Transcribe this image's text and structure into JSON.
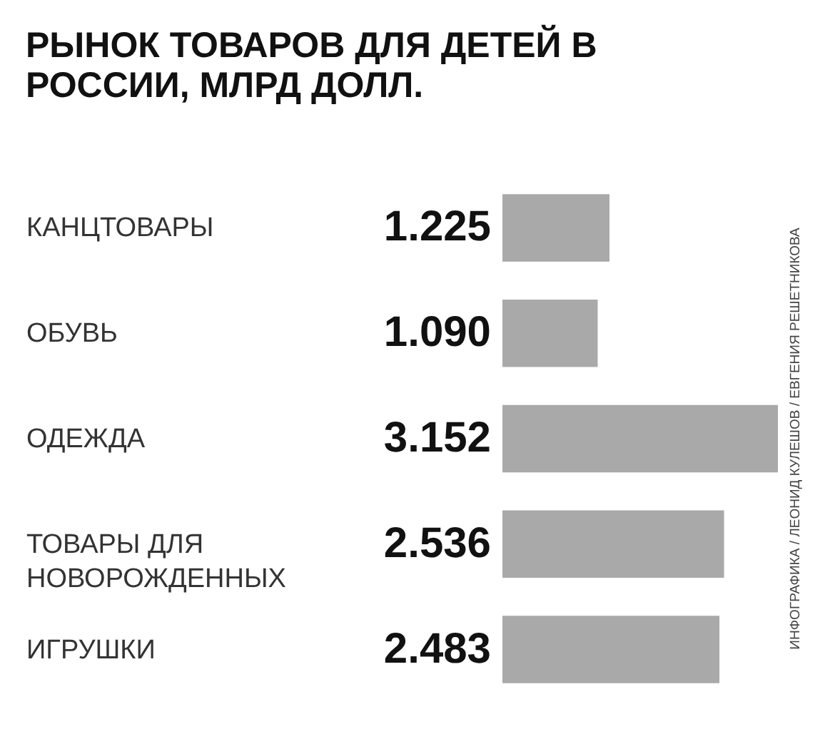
{
  "chart_data": {
    "type": "bar",
    "orientation": "horizontal",
    "title": "РЫНОК ТОВАРОВ ДЛЯ ДЕТЕЙ В РОССИИ, МЛРД ДОЛЛ.",
    "categories": [
      "КАНЦТОВАРЫ",
      "ОБУВЬ",
      "ОДЕЖДА",
      "ТОВАРЫ ДЛЯ НОВОРОЖДЕННЫХ",
      "ИГРУШКИ"
    ],
    "values": [
      1.225,
      1.09,
      3.152,
      2.536,
      2.483
    ],
    "value_labels": [
      "1.225",
      "1.090",
      "3.152",
      "2.536",
      "2.483"
    ],
    "color": "#a9a9a9",
    "annotations": [
      "ИНФОГРАФИКА / ЛЕОНИД КУЛЕШОВ / ЕВГЕНИЯ РЕШЕТНИКОВА"
    ]
  }
}
